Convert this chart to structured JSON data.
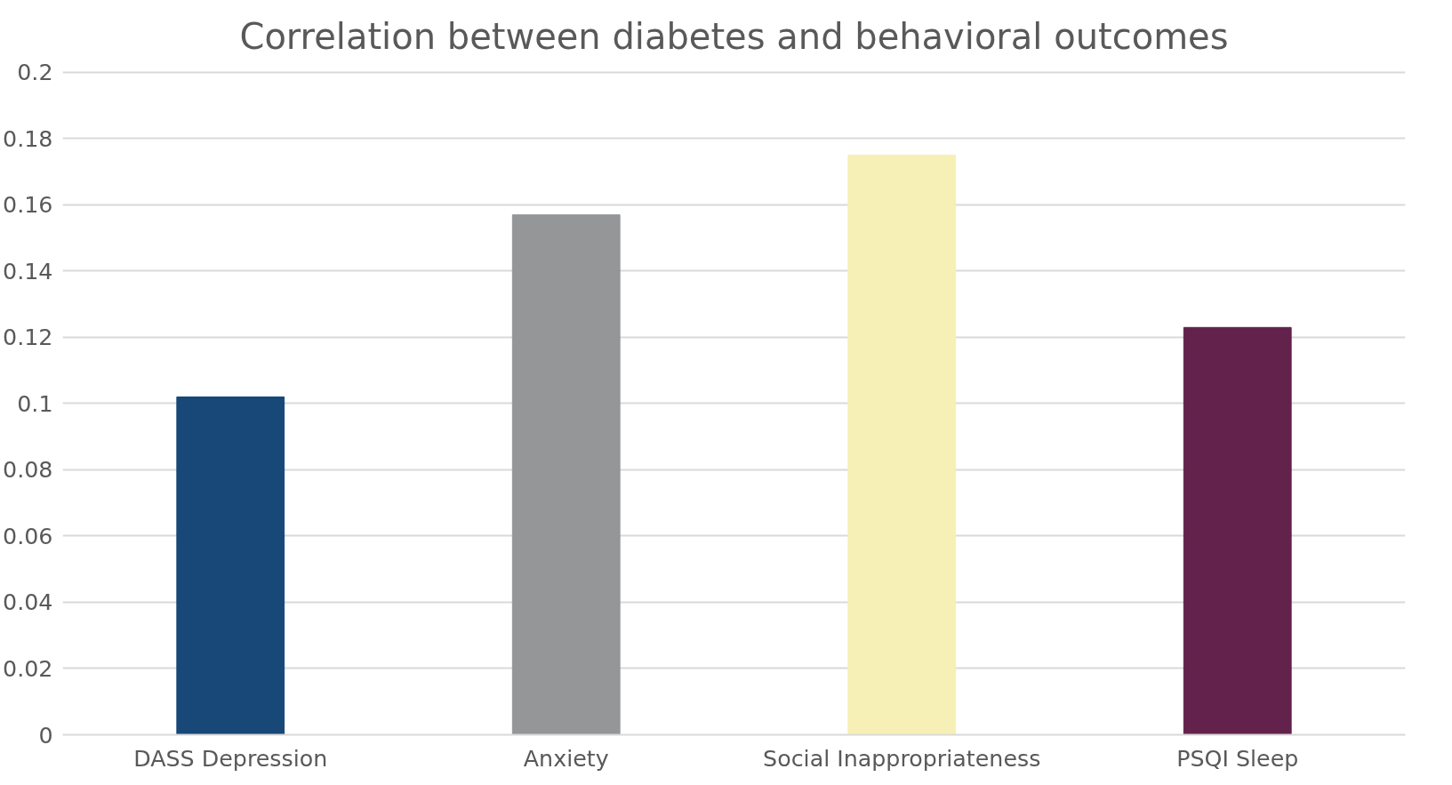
{
  "chart_data": {
    "type": "bar",
    "title": "Correlation between diabetes and behavioral outcomes",
    "categories": [
      "DASS Depression",
      "Anxiety",
      "Social Inappropriateness",
      "PSQI Sleep"
    ],
    "values": [
      0.102,
      0.157,
      0.175,
      0.123
    ],
    "colors": [
      "#174878",
      "#959698",
      "#f6f0b6",
      "#63224c"
    ],
    "ylim": [
      0,
      0.2
    ],
    "yticks": [
      0,
      0.02,
      0.04,
      0.06,
      0.08,
      0.1,
      0.12,
      0.14,
      0.16,
      0.18,
      0.2
    ],
    "grid": "y"
  }
}
